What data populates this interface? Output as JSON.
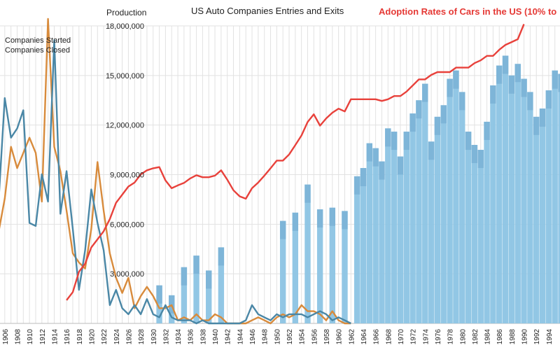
{
  "chart_data": {
    "type": "bar",
    "title": "US Auto Companies Entries and Exits",
    "ylabel": "Production",
    "overlay_title": "Adoption Rates of Cars in the US (10% to",
    "ylim": [
      0,
      18000000
    ],
    "yticks": [
      3000000,
      6000000,
      9000000,
      12000000,
      15000000,
      18000000
    ],
    "ytick_labels": [
      "3,000,000",
      "6,000,000",
      "9,000,000",
      "12,000,000",
      "15,000,000",
      "18,000,000"
    ],
    "xlim": [
      1905,
      1996
    ],
    "xtick_years": [
      1906,
      1908,
      1910,
      1912,
      1914,
      1916,
      1918,
      1920,
      1922,
      1924,
      1926,
      1928,
      1930,
      1932,
      1934,
      1936,
      1938,
      1940,
      1942,
      1944,
      1946,
      1948,
      1950,
      1952,
      1954,
      1956,
      1958,
      1960,
      1962,
      1964,
      1966,
      1968,
      1970,
      1972,
      1974,
      1976,
      1978,
      1980,
      1982,
      1984,
      1986,
      1988,
      1990,
      1992,
      1994
    ],
    "colors": {
      "production": "#8cc4e4",
      "production_dark": "#7ab2d6",
      "started": "#4a87a6",
      "closed": "#d88b3c",
      "adoption": "#e8413b",
      "grid": "#e2e2e2",
      "overlay_title": "#e53935"
    },
    "series": [
      {
        "name": "Companies Started",
        "x": [
          1905,
          1906,
          1907,
          1908,
          1909,
          1910,
          1911,
          1912,
          1913,
          1914,
          1915,
          1916,
          1917,
          1918,
          1919,
          1920,
          1921,
          1922,
          1923,
          1924,
          1925,
          1926,
          1927,
          1928,
          1929,
          1930,
          1931,
          1932,
          1933,
          1934,
          1935,
          1936,
          1937,
          1938,
          1939,
          1940,
          1941,
          1942,
          1943,
          1944,
          1945,
          1946,
          1947,
          1948,
          1949,
          1950,
          1951,
          1952,
          1953,
          1954,
          1955,
          1956,
          1957,
          1958,
          1959,
          1960,
          1961,
          1962
        ],
        "y": [
          40,
          74,
          61,
          64,
          70,
          33,
          32,
          49,
          40,
          93,
          36,
          50,
          31,
          11,
          24,
          44,
          33,
          24,
          6,
          11,
          5,
          3,
          6,
          3,
          8,
          3,
          2,
          6,
          2,
          1,
          1,
          1,
          0,
          1,
          0,
          0,
          0,
          0,
          0,
          0,
          1,
          6,
          3,
          2,
          1,
          3,
          2,
          3,
          3,
          3,
          2,
          3,
          4,
          3,
          1,
          2,
          1,
          0
        ]
      },
      {
        "name": "Companies Closed",
        "x": [
          1905,
          1906,
          1907,
          1908,
          1909,
          1910,
          1911,
          1912,
          1913,
          1914,
          1915,
          1916,
          1917,
          1918,
          1919,
          1920,
          1921,
          1922,
          1923,
          1924,
          1925,
          1926,
          1927,
          1928,
          1929,
          1930,
          1931,
          1932,
          1933,
          1934,
          1935,
          1936,
          1937,
          1938,
          1939,
          1940,
          1941,
          1942,
          1943,
          1944,
          1945,
          1946,
          1947,
          1948,
          1949,
          1950,
          1951,
          1952,
          1953,
          1954,
          1955,
          1956,
          1957,
          1958,
          1959,
          1960,
          1961,
          1962
        ],
        "y": [
          30,
          41,
          58,
          51,
          56,
          61,
          56,
          40,
          100,
          58,
          50,
          37,
          23,
          20,
          18,
          31,
          53,
          37,
          23,
          15,
          10,
          15,
          5,
          9,
          12,
          9,
          5,
          5,
          6,
          1,
          2,
          1,
          3,
          1,
          1,
          3,
          2,
          0,
          0,
          0,
          0,
          1,
          2,
          1,
          0,
          2,
          3,
          2,
          3,
          6,
          4,
          4,
          3,
          1,
          4,
          1,
          0,
          0
        ]
      },
      {
        "name": "Production",
        "x": [
          1930,
          1931,
          1932,
          1933,
          1934,
          1935,
          1936,
          1937,
          1938,
          1939,
          1940,
          1941,
          1942,
          1943,
          1944,
          1945,
          1946,
          1947,
          1948,
          1949,
          1950,
          1951,
          1952,
          1953,
          1954,
          1955,
          1956,
          1957,
          1958,
          1959,
          1960,
          1961,
          1962,
          1963,
          1964,
          1965,
          1966,
          1967,
          1968,
          1969,
          1970,
          1971,
          1972,
          1973,
          1974,
          1975,
          1976,
          1977,
          1978,
          1979,
          1980,
          1981,
          1982,
          1983,
          1984,
          1985,
          1986,
          1987,
          1988,
          1989,
          1990,
          1991,
          1992,
          1993,
          1994,
          1995,
          1996
        ],
        "y": [
          0,
          2300000,
          0,
          1700000,
          0,
          3400000,
          0,
          4100000,
          0,
          3200000,
          0,
          4600000,
          0,
          0,
          0,
          0,
          0,
          0,
          0,
          0,
          0,
          6200000,
          0,
          6700000,
          0,
          8400000,
          0,
          6900000,
          0,
          7000000,
          0,
          6800000,
          0,
          8900000,
          9400000,
          10900000,
          10600000,
          9800000,
          11800000,
          11600000,
          10100000,
          11600000,
          12700000,
          13500000,
          14500000,
          11000000,
          12500000,
          13200000,
          14800000,
          15300000,
          14000000,
          11600000,
          10800000,
          10500000,
          12200000,
          14400000,
          15600000,
          16200000,
          15000000,
          15700000,
          14800000,
          14000000,
          12500000,
          13000000,
          14100000,
          15300000,
          15100000
        ]
      },
      {
        "name": "Adoption Rate",
        "x": [
          1916,
          1917,
          1918,
          1919,
          1920,
          1921,
          1922,
          1923,
          1924,
          1925,
          1926,
          1927,
          1928,
          1929,
          1930,
          1931,
          1932,
          1933,
          1934,
          1935,
          1936,
          1937,
          1938,
          1939,
          1940,
          1941,
          1942,
          1943,
          1944,
          1945,
          1946,
          1947,
          1948,
          1949,
          1950,
          1951,
          1952,
          1953,
          1954,
          1955,
          1956,
          1957,
          1958,
          1959,
          1960,
          1961,
          1962,
          1963,
          1964,
          1965,
          1966,
          1967,
          1968,
          1969,
          1970,
          1971,
          1972,
          1973,
          1974,
          1975,
          1976,
          1977,
          1978,
          1979,
          1980,
          1981,
          1982,
          1983,
          1984,
          1985,
          1986,
          1987,
          1988,
          1989,
          1990
        ],
        "y": [
          10,
          12,
          17,
          19,
          23,
          25,
          27,
          30,
          34,
          36,
          38,
          39,
          41,
          42,
          42.5,
          42.8,
          39.5,
          37.6,
          38.3,
          38.9,
          40,
          40.8,
          40.3,
          40.3,
          40.7,
          42,
          39.7,
          37.1,
          35.6,
          35,
          37.6,
          39,
          40.7,
          42.5,
          44.4,
          44.4,
          45.9,
          48.2,
          50.6,
          53.9,
          55.8,
          53,
          54.8,
          56.2,
          57.2,
          56.5,
          59.5,
          59.5,
          59.5,
          59.5,
          59.5,
          59.1,
          59.5,
          60.3,
          60.3,
          61.4,
          62.9,
          64.4,
          64.4,
          65.5,
          66.2,
          66.2,
          66.2,
          67.3,
          67.3,
          67.3,
          68.4,
          69.1,
          70.2,
          70.2,
          71.7,
          72.9,
          73.6,
          74.3,
          78
        ]
      }
    ],
    "legend": {
      "placement": "top-left",
      "labels": [
        "Companies Started",
        "Companies Closed"
      ]
    }
  }
}
